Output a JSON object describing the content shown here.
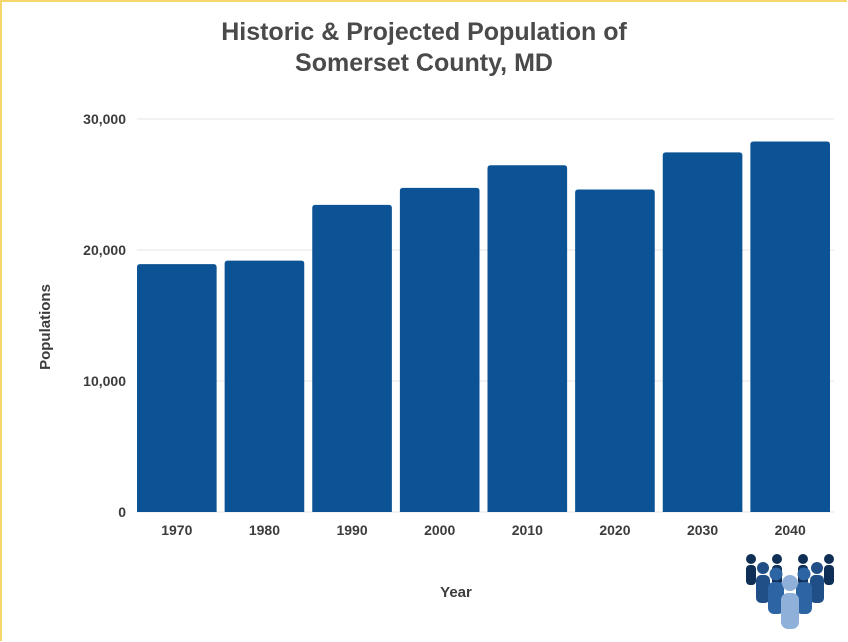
{
  "chart_data": {
    "type": "bar",
    "title_lines": [
      "Historic & Projected Population of",
      "Somerset County, MD"
    ],
    "xlabel": "Year",
    "ylabel": "Populations",
    "categories": [
      "1970",
      "1980",
      "1990",
      "2000",
      "2010",
      "2020",
      "2030",
      "2040"
    ],
    "values": [
      18924,
      19188,
      23440,
      24747,
      26470,
      24620,
      27450,
      28280
    ],
    "ylim": [
      0,
      30000
    ],
    "yticks": [
      0,
      10000,
      20000,
      30000
    ],
    "ytick_labels": [
      "0",
      "10,000",
      "20,000",
      "30,000"
    ],
    "grid": true,
    "bar_color": "#0b5394"
  },
  "logo": {
    "icon": "people-group-icon"
  }
}
